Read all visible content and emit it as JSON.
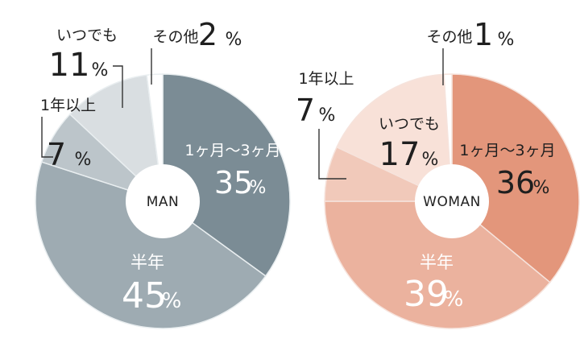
{
  "chart_data": [
    {
      "type": "pie",
      "center_label": "MAN",
      "colors": {
        "1ヶ月〜3ヶ月": "#7b8c95",
        "半年": "#9eabb2",
        "1年以上": "#bcc5ca",
        "いつでも": "#d9dee1",
        "その他": "#ffffff",
        "stroke": "#e9eef0"
      },
      "slices": [
        {
          "label": "1ヶ月〜3ヶ月",
          "value": 35,
          "value_text": "35",
          "pct": "%"
        },
        {
          "label": "半年",
          "value": 45,
          "value_text": "45",
          "pct": "%"
        },
        {
          "label": "1年以上",
          "value": 7,
          "value_text": "7",
          "pct": "%"
        },
        {
          "label": "いつでも",
          "value": 11,
          "value_text": "11",
          "pct": "%"
        },
        {
          "label": "その他",
          "value": 2,
          "value_text": "2",
          "pct": "%"
        }
      ]
    },
    {
      "type": "pie",
      "center_label": "WOMAN",
      "colors": {
        "1ヶ月〜3ヶ月": "#e3967b",
        "半年": "#ebb29e",
        "1年以上": "#f1c9ba",
        "いつでも": "#f8e1d8",
        "その他": "#ffffff",
        "stroke": "#f6e3dc"
      },
      "slices": [
        {
          "label": "1ヶ月〜3ヶ月",
          "value": 36,
          "value_text": "36",
          "pct": "%"
        },
        {
          "label": "半年",
          "value": 39,
          "value_text": "39",
          "pct": "%"
        },
        {
          "label": "1年以上",
          "value": 7,
          "value_text": "7",
          "pct": "%"
        },
        {
          "label": "いつでも",
          "value": 17,
          "value_text": "17",
          "pct": "%"
        },
        {
          "label": "その他",
          "value": 1,
          "value_text": "1",
          "pct": "%"
        }
      ]
    }
  ]
}
